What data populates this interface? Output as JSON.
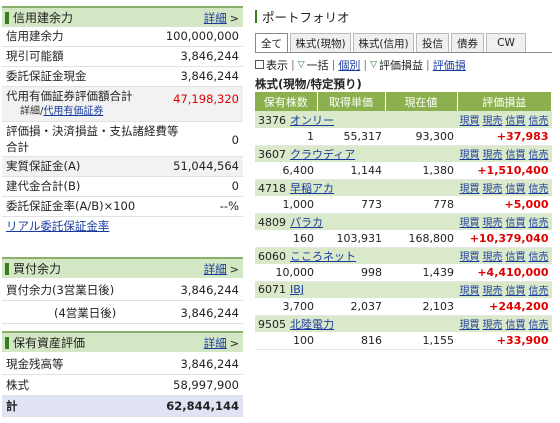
{
  "credit": {
    "title": "信用建余力",
    "more": "詳細",
    "rows": [
      {
        "label": "信用建余力",
        "value": "100,000,000"
      },
      {
        "label": "現引可能額",
        "value": "3,846,244"
      },
      {
        "label": "委託保証金現金",
        "value": "3,846,244"
      },
      {
        "label": "代用有価証券評価額合計",
        "value": "47,198,320",
        "sub": "詳細/",
        "sub_link": "代用有価証券"
      },
      {
        "label": "評価損・決済損益・支払諸経費等合計",
        "value": "0"
      },
      {
        "label": "実質保証金(A)",
        "value": "51,044,564"
      },
      {
        "label": "建代金合計(B)",
        "value": "0"
      },
      {
        "label": "委託保証金率(A/B)×100",
        "value": "--%"
      }
    ],
    "link": "リアル委託保証金率"
  },
  "buying": {
    "title": "買付余力",
    "more": "詳細",
    "rows": [
      {
        "label": "買付余力(3営業日後)",
        "value": "3,846,244"
      },
      {
        "label": "(4営業日後)",
        "value": "3,846,244"
      }
    ]
  },
  "assets": {
    "title": "保有資産評価",
    "more": "詳細",
    "rows": [
      {
        "label": "現金残高等",
        "value": "3,846,244"
      },
      {
        "label": "株式",
        "value": "58,997,900"
      },
      {
        "label": "計",
        "value": "62,844,144"
      }
    ]
  },
  "portfolio": {
    "title": "ポートフォリオ",
    "tabs": [
      "全て",
      "株式(現物)",
      "株式(信用)",
      "投信",
      "債券",
      "CW"
    ],
    "controls": {
      "display": "表示",
      "all": "一括",
      "individual": "個別",
      "pl": "評価損益",
      "pl2": "評価損"
    },
    "subtitle": "株式(現物/特定預り)",
    "headers": [
      "保有株数",
      "取得単価",
      "現在値",
      "評価損益"
    ],
    "link_labels": [
      "現買",
      "現売",
      "信買",
      "信売"
    ],
    "stocks": [
      {
        "code": "3376",
        "name": "オンリー",
        "qty": "1",
        "cost": "55,317",
        "price": "93,300",
        "pl": "+37,983"
      },
      {
        "code": "3607",
        "name": "クラウディア",
        "qty": "6,400",
        "cost": "1,144",
        "price": "1,380",
        "pl": "+1,510,400"
      },
      {
        "code": "4718",
        "name": "早稲アカ",
        "qty": "1,000",
        "cost": "773",
        "price": "778",
        "pl": "+5,000"
      },
      {
        "code": "4809",
        "name": "パラカ",
        "qty": "160",
        "cost": "103,931",
        "price": "168,800",
        "pl": "+10,379,040"
      },
      {
        "code": "6060",
        "name": "こころネット",
        "qty": "10,000",
        "cost": "998",
        "price": "1,439",
        "pl": "+4,410,000"
      },
      {
        "code": "6071",
        "name": "IBJ",
        "qty": "3,700",
        "cost": "2,037",
        "price": "2,103",
        "pl": "+244,200"
      },
      {
        "code": "9505",
        "name": "北陸電力",
        "qty": "100",
        "cost": "816",
        "price": "1,155",
        "pl": "+33,900"
      }
    ]
  },
  "colors": {
    "header_bg": "#d3e7c4",
    "table_head": "#8cb04e",
    "stock_row": "#dbe9cb",
    "profit": "#e00000",
    "total_bg": "#dfe3f4"
  }
}
